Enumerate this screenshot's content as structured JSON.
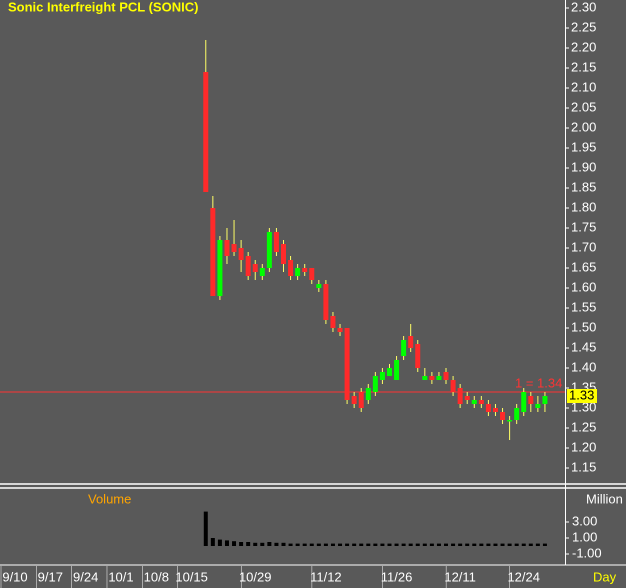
{
  "chart_data": {
    "type": "candlestick",
    "title": "Sonic Interfreight PCL (SONIC)",
    "x_label": "Day",
    "categories": [
      "9/10",
      null,
      null,
      null,
      null,
      "9/17",
      null,
      null,
      null,
      null,
      "9/24",
      null,
      null,
      null,
      null,
      "10/1",
      null,
      null,
      null,
      null,
      "10/8",
      null,
      null,
      null,
      null,
      "10/15",
      null,
      null,
      null,
      null,
      null,
      null,
      null,
      null,
      "10/29",
      null,
      null,
      null,
      null,
      null,
      null,
      null,
      null,
      null,
      "11/12",
      null,
      null,
      null,
      null,
      null,
      null,
      null,
      null,
      null,
      "11/26",
      null,
      null,
      null,
      null,
      null,
      null,
      null,
      null,
      "12/11",
      null,
      null,
      null,
      null,
      null,
      null,
      null,
      null,
      "12/24",
      null,
      null,
      null,
      null
    ],
    "open": [
      null,
      null,
      null,
      null,
      null,
      null,
      null,
      null,
      null,
      null,
      null,
      null,
      null,
      null,
      null,
      null,
      null,
      null,
      null,
      null,
      null,
      null,
      null,
      null,
      null,
      null,
      null,
      2.14,
      1.8,
      1.58,
      1.72,
      1.71,
      1.7,
      1.68,
      1.66,
      1.63,
      1.65,
      1.74,
      1.71,
      1.67,
      1.63,
      1.65,
      1.65,
      1.6,
      1.61,
      1.53,
      1.5,
      1.5,
      1.33,
      1.34,
      1.32,
      1.34,
      1.37,
      1.38,
      1.37,
      1.43,
      1.48,
      1.46,
      1.37,
      1.38,
      1.37,
      1.39,
      1.37,
      1.35,
      1.33,
      1.31,
      1.32,
      1.31,
      1.3,
      1.29,
      1.27,
      1.27,
      1.29,
      1.33,
      1.3,
      1.31,
      null
    ],
    "high": [
      null,
      null,
      null,
      null,
      null,
      null,
      null,
      null,
      null,
      null,
      null,
      null,
      null,
      null,
      null,
      null,
      null,
      null,
      null,
      null,
      null,
      null,
      null,
      null,
      null,
      null,
      null,
      2.22,
      1.83,
      1.73,
      1.75,
      1.77,
      1.72,
      1.69,
      1.67,
      1.66,
      1.75,
      1.75,
      1.72,
      1.68,
      1.66,
      1.66,
      1.65,
      1.62,
      1.62,
      1.54,
      1.51,
      1.5,
      1.34,
      1.35,
      1.36,
      1.39,
      1.4,
      1.41,
      1.43,
      1.48,
      1.51,
      1.47,
      1.4,
      1.39,
      1.39,
      1.4,
      1.38,
      1.36,
      1.34,
      1.33,
      1.33,
      1.32,
      1.31,
      1.3,
      1.28,
      1.31,
      1.35,
      1.34,
      1.33,
      1.34,
      null
    ],
    "low": [
      null,
      null,
      null,
      null,
      null,
      null,
      null,
      null,
      null,
      null,
      null,
      null,
      null,
      null,
      null,
      null,
      null,
      null,
      null,
      null,
      null,
      null,
      null,
      null,
      null,
      null,
      null,
      1.84,
      1.58,
      1.57,
      1.66,
      1.68,
      1.64,
      1.62,
      1.62,
      1.62,
      1.64,
      1.68,
      1.64,
      1.62,
      1.62,
      1.63,
      1.61,
      1.59,
      1.51,
      1.49,
      1.48,
      1.31,
      1.3,
      1.29,
      1.31,
      1.33,
      1.36,
      1.38,
      1.37,
      1.42,
      1.44,
      1.39,
      1.37,
      1.36,
      1.37,
      1.36,
      1.33,
      1.3,
      1.31,
      1.3,
      1.3,
      1.28,
      1.28,
      1.26,
      1.22,
      1.26,
      1.28,
      1.29,
      1.29,
      1.29,
      null
    ],
    "close": [
      null,
      null,
      null,
      null,
      null,
      null,
      null,
      null,
      null,
      null,
      null,
      null,
      null,
      null,
      null,
      null,
      null,
      null,
      null,
      null,
      null,
      null,
      null,
      null,
      null,
      null,
      null,
      1.84,
      1.58,
      1.72,
      1.68,
      1.69,
      1.67,
      1.63,
      1.64,
      1.65,
      1.74,
      1.69,
      1.66,
      1.63,
      1.65,
      1.64,
      1.62,
      1.61,
      1.52,
      1.5,
      1.49,
      1.32,
      1.31,
      1.3,
      1.35,
      1.38,
      1.39,
      1.4,
      1.42,
      1.47,
      1.45,
      1.4,
      1.38,
      1.37,
      1.38,
      1.37,
      1.34,
      1.31,
      1.32,
      1.32,
      1.31,
      1.29,
      1.29,
      1.27,
      1.27,
      1.3,
      1.34,
      1.31,
      1.31,
      1.33,
      null
    ],
    "up_color": "#00ff00",
    "down_color": "#ff2a2a",
    "wick_color": "#ffff66",
    "ylim": [
      1.11,
      2.32
    ],
    "yticks": [
      1.15,
      {
        "value": 1.2,
        "label": "1.20"
      },
      1.25,
      {
        "value": 1.3,
        "label": "1.30"
      },
      1.35,
      {
        "value": 1.4,
        "label": "1.40"
      },
      1.45,
      {
        "value": 1.5,
        "label": "1.50"
      },
      1.55,
      {
        "value": 1.6,
        "label": "1.60"
      },
      1.65,
      {
        "value": 1.7,
        "label": "1.70"
      },
      1.75,
      {
        "value": 1.8,
        "label": "1.80"
      },
      1.85,
      {
        "value": 1.9,
        "label": "1.90"
      },
      1.95,
      {
        "value": 2,
        "label": "2.00"
      },
      2.05,
      {
        "value": 2.1,
        "label": "2.10"
      },
      2.15,
      {
        "value": 2.2,
        "label": "2.20"
      },
      2.25,
      {
        "value": 2.3,
        "label": "2.30"
      }
    ],
    "hline": {
      "label": "1 = 1.34",
      "value": 1.34,
      "color": "#ff3333"
    },
    "volume": {
      "title": "Volume",
      "axis_label": "Million",
      "color": "#000000",
      "values": [
        null,
        null,
        null,
        null,
        null,
        null,
        null,
        null,
        null,
        null,
        null,
        null,
        null,
        null,
        null,
        null,
        null,
        null,
        null,
        null,
        null,
        null,
        null,
        null,
        null,
        null,
        null,
        4.3,
        1.0,
        0.8,
        0.7,
        0.6,
        0.5,
        0.5,
        0.4,
        0.4,
        0.5,
        0.4,
        0.4,
        0.3,
        0.3,
        0.3,
        0.3,
        0.3,
        0.3,
        0.3,
        0.3,
        0.3,
        0.3,
        0.3,
        0.3,
        0.3,
        0.3,
        0.3,
        0.3,
        0.3,
        0.3,
        0.3,
        0.3,
        0.3,
        0.3,
        0.3,
        0.3,
        0.3,
        0.3,
        0.3,
        0.3,
        0.3,
        0.3,
        0.3,
        0.3,
        0.3,
        0.3,
        0.3,
        0.3,
        0.3,
        null
      ],
      "ylim": [
        -2,
        7
      ],
      "yticks": [
        {
          "value": -1,
          "label": "-1.00"
        },
        {
          "value": 1,
          "label": "1.00"
        },
        {
          "value": 3,
          "label": "3.00"
        }
      ]
    }
  }
}
